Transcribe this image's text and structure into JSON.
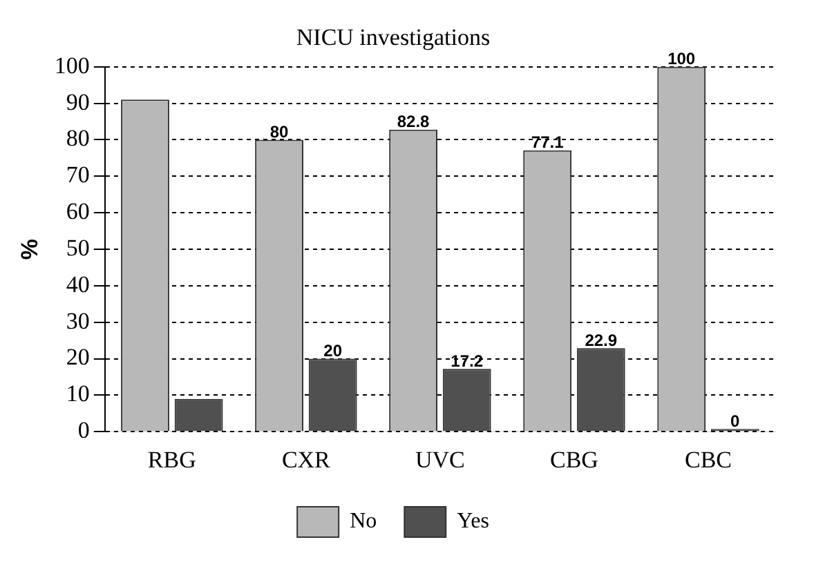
{
  "chart_data": {
    "type": "bar",
    "title": "NICU investigations",
    "ylabel": "%",
    "categories": [
      "RBG",
      "CXR",
      "UVC",
      "CBG",
      "CBC"
    ],
    "series": [
      {
        "name": "No",
        "color": "#b8b8b8",
        "values": [
          91,
          80,
          82.8,
          77.1,
          100
        ],
        "value_labels": [
          null,
          "80",
          "82.8",
          "77.1",
          "100"
        ]
      },
      {
        "name": "Yes",
        "color": "#505050",
        "values": [
          9,
          20,
          17.2,
          22.9,
          0
        ],
        "value_labels": [
          null,
          "20",
          "17.2",
          "22.9",
          "0"
        ]
      }
    ],
    "ylim": [
      0,
      100
    ],
    "yticks": [
      0,
      10,
      20,
      30,
      40,
      50,
      60,
      70,
      80,
      90,
      100
    ],
    "grid": "y",
    "legend": "bottom"
  }
}
